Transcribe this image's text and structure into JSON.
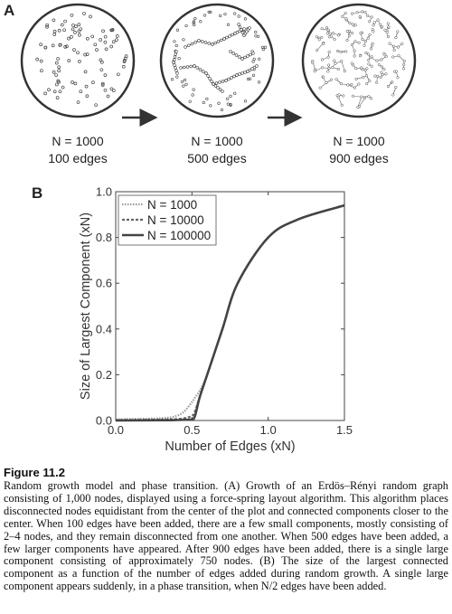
{
  "panels": {
    "a": {
      "letter": "A",
      "graphs": [
        {
          "n_label": "N = 1000",
          "edges_label": "100 edges",
          "nodes": 1000,
          "edges": 100
        },
        {
          "n_label": "N = 1000",
          "edges_label": "500 edges",
          "nodes": 1000,
          "edges": 500
        },
        {
          "n_label": "N = 1000",
          "edges_label": "900 edges",
          "nodes": 1000,
          "edges": 900
        }
      ]
    },
    "b": {
      "letter": "B"
    }
  },
  "chart_data": {
    "type": "line",
    "xlabel": "Number of Edges (xN)",
    "ylabel": "Size of Largest Component (xN)",
    "xlim": [
      0,
      1.5
    ],
    "ylim": [
      0,
      1
    ],
    "x_ticks": [
      "0.0",
      "0.5",
      "1.0",
      "1.5"
    ],
    "y_ticks": [
      "0.0",
      "0.2",
      "0.4",
      "0.6",
      "0.8",
      "1.0"
    ],
    "legend_position": "top-left",
    "series": [
      {
        "name": "N = 1000",
        "style": "dotted",
        "x": [
          0,
          0.3,
          0.4,
          0.45,
          0.5,
          0.52,
          0.55,
          0.6,
          0.7,
          0.8,
          1.0,
          1.2,
          1.5
        ],
        "y": [
          0.005,
          0.01,
          0.02,
          0.04,
          0.08,
          0.1,
          0.13,
          0.2,
          0.4,
          0.6,
          0.8,
          0.88,
          0.94
        ]
      },
      {
        "name": "N = 10000",
        "style": "dashed",
        "x": [
          0,
          0.3,
          0.4,
          0.45,
          0.5,
          0.52,
          0.55,
          0.6,
          0.7,
          0.8,
          1.0,
          1.2,
          1.5
        ],
        "y": [
          0.002,
          0.004,
          0.006,
          0.01,
          0.02,
          0.04,
          0.1,
          0.2,
          0.4,
          0.6,
          0.8,
          0.88,
          0.94
        ]
      },
      {
        "name": "N = 100000",
        "style": "solid",
        "x": [
          0,
          0.3,
          0.4,
          0.45,
          0.5,
          0.52,
          0.55,
          0.6,
          0.7,
          0.8,
          1.0,
          1.2,
          1.5
        ],
        "y": [
          0,
          0.001,
          0.002,
          0.003,
          0.005,
          0.02,
          0.1,
          0.2,
          0.4,
          0.6,
          0.8,
          0.88,
          0.94
        ]
      }
    ]
  },
  "figure": {
    "label": "Figure 11.2",
    "caption": "Random growth model and phase transition. (A) Growth of an Erdös–Rényi random graph consisting of 1,000 nodes, displayed using a force-spring layout algorithm. This algorithm places disconnected nodes equidistant from the center of the plot and connected components closer to the center. When 100 edges have been added, there are a few small components, mostly consisting of 2–4 nodes, and they remain disconnected from one another. When 500 edges have been added, a few larger components have appeared. After 900 edges have been added, there is a single large component consisting of approximately 750 nodes. (B) The size of the largest connected component as a function of the number of edges added during random growth. A single large component appears suddenly, in a phase transition, when N/2 edges have been added."
  }
}
